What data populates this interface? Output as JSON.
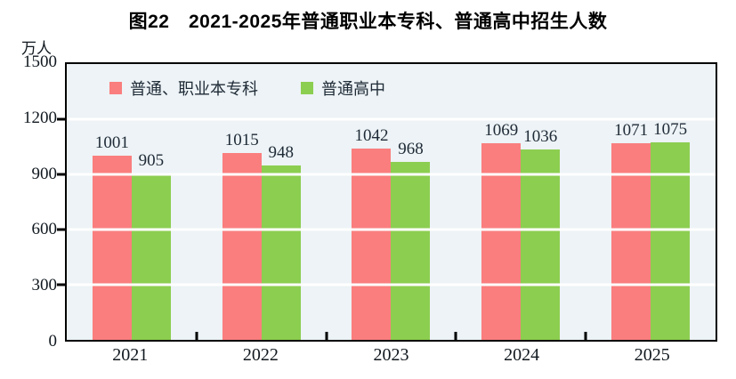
{
  "title": "图22　2021-2025年普通职业本专科、普通高中招生人数",
  "y_axis_unit": "万人",
  "colors": {
    "plot_background": "#EDF3F6",
    "gridline": "#FFFFFF",
    "axis": "#000000",
    "series1": "#FA7E7E",
    "series2": "#8CCE50",
    "text": "#1E2A36"
  },
  "chart_data": {
    "type": "bar",
    "title": "图22　2021-2025年普通职业本专科、普通高中招生人数",
    "categories": [
      "2021",
      "2022",
      "2023",
      "2024",
      "2025"
    ],
    "series": [
      {
        "name": "普通、职业本专科",
        "color": "#FA7E7E",
        "values": [
          1001,
          1015,
          1042,
          1069,
          1071
        ]
      },
      {
        "name": "普通高中",
        "color": "#8CCE50",
        "values": [
          905,
          948,
          968,
          1036,
          1075
        ]
      }
    ],
    "xlabel": "",
    "ylabel": "万人",
    "ylim": [
      0,
      1500
    ],
    "yticks": [
      0,
      300,
      600,
      900,
      1200,
      1500
    ],
    "grid": true,
    "gridline_color": "#FFFFFF",
    "plot_background": "#EDF3F6",
    "legend_position": "top-left-inside",
    "bar_value_labels": true
  }
}
